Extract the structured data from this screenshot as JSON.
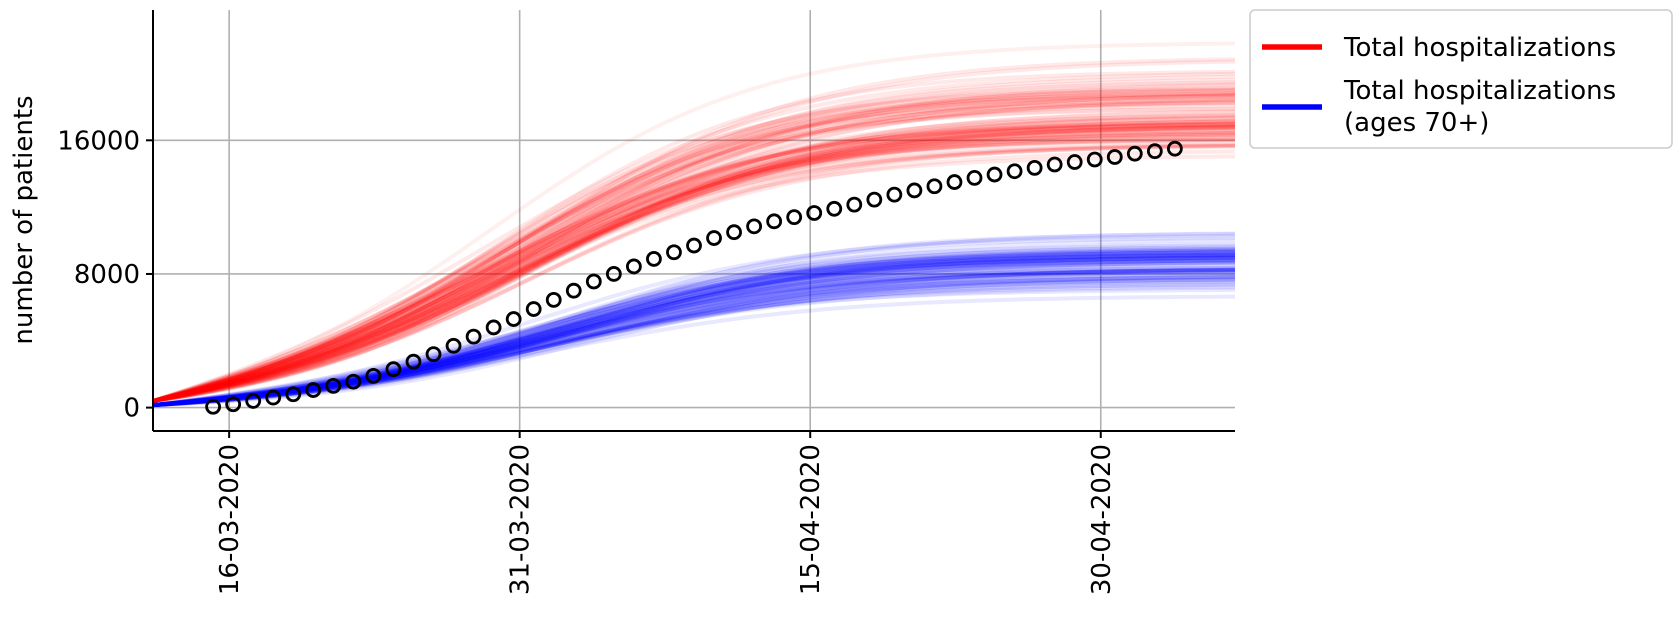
{
  "chart_data": {
    "type": "line",
    "title": "",
    "xlabel": "",
    "ylabel": "number of patients",
    "x_start_date": "12-03-2020",
    "xlim_days": [
      0,
      54
    ],
    "ylim": [
      -1400,
      23800
    ],
    "grid": true,
    "legend_position": "outside-top-right",
    "yticks": [
      {
        "value": 0,
        "label": "0"
      },
      {
        "value": 8000,
        "label": "8000"
      },
      {
        "value": 16000,
        "label": "16000"
      }
    ],
    "xticks": [
      {
        "day": 3.8,
        "label": "16-03-2020"
      },
      {
        "day": 18.3,
        "label": "31-03-2020"
      },
      {
        "day": 32.8,
        "label": "15-04-2020"
      },
      {
        "day": 47.3,
        "label": "30-04-2020"
      }
    ],
    "series": [
      {
        "name": "Total hospitalizations",
        "color": "#ff0000",
        "kind": "ensemble",
        "median_final": 16000,
        "spread_low": 12000,
        "spread_high": 22500,
        "growth_rate": 0.145,
        "midpoint_day": 18,
        "start_value": 400
      },
      {
        "name": "Total hospitalizations\n(ages 70+)",
        "legend_lines": [
          "Total hospitalizations",
          "(ages 70+)"
        ],
        "color": "#0000ff",
        "kind": "ensemble",
        "median_final": 8200,
        "spread_low": 5000,
        "spread_high": 11500,
        "growth_rate": 0.145,
        "midpoint_day": 20,
        "start_value": 150
      }
    ],
    "observed": {
      "name": "observed",
      "marker": "open-circle",
      "color": "#000000",
      "x_days": [
        3,
        4,
        5,
        6,
        7,
        8,
        9,
        10,
        11,
        12,
        13,
        14,
        15,
        16,
        17,
        18,
        19,
        20,
        21,
        22,
        23,
        24,
        25,
        26,
        27,
        28,
        29,
        30,
        31,
        32,
        33,
        34,
        35,
        36,
        37,
        38,
        39,
        40,
        41,
        42,
        43,
        44,
        45,
        46,
        47,
        48,
        49,
        50,
        51
      ],
      "values": [
        50,
        200,
        400,
        600,
        800,
        1050,
        1300,
        1550,
        1900,
        2300,
        2750,
        3200,
        3700,
        4250,
        4800,
        5300,
        5900,
        6450,
        7000,
        7550,
        8000,
        8450,
        8900,
        9300,
        9700,
        10150,
        10500,
        10850,
        11150,
        11400,
        11650,
        11900,
        12150,
        12450,
        12750,
        13000,
        13250,
        13500,
        13750,
        13950,
        14150,
        14350,
        14550,
        14700,
        14850,
        15000,
        15200,
        15350,
        15500
      ]
    }
  }
}
